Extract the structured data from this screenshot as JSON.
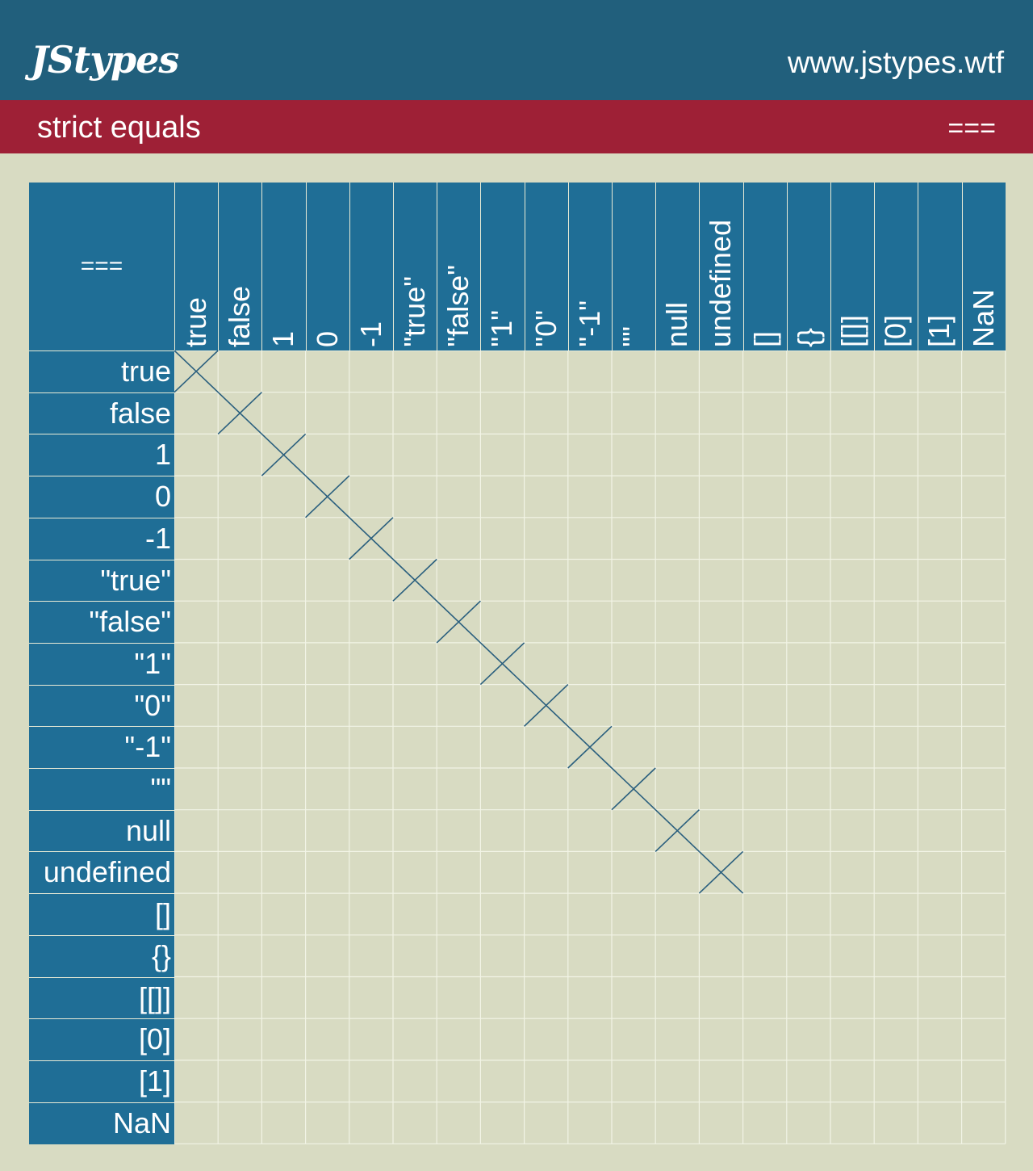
{
  "header": {
    "logo": "JStypes",
    "site": "www.jstypes.wtf"
  },
  "subheader": {
    "title": "strict equals",
    "operator": "==="
  },
  "matrix": {
    "corner_label": "===",
    "labels": [
      "true",
      "false",
      "1",
      "0",
      "-1",
      "\"true\"",
      "\"false\"",
      "\"1\"",
      "\"0\"",
      "\"-1\"",
      "\"\"",
      "null",
      "undefined",
      "[]",
      "{}",
      "[[]]",
      "[0]",
      "[1]",
      "NaN"
    ],
    "equal_pairs": [
      [
        0,
        0
      ],
      [
        1,
        1
      ],
      [
        2,
        2
      ],
      [
        3,
        3
      ],
      [
        4,
        4
      ],
      [
        5,
        5
      ],
      [
        6,
        6
      ],
      [
        7,
        7
      ],
      [
        8,
        8
      ],
      [
        9,
        9
      ],
      [
        10,
        10
      ],
      [
        11,
        11
      ],
      [
        12,
        12
      ]
    ],
    "colors": {
      "header_bg": "#215f7c",
      "subheader_bg": "#9e2036",
      "label_bg": "#1f6e96",
      "cell_bg": "#d8dbc2",
      "grid_line": "#f2f4e6",
      "mark": "#2a5f7e"
    }
  }
}
